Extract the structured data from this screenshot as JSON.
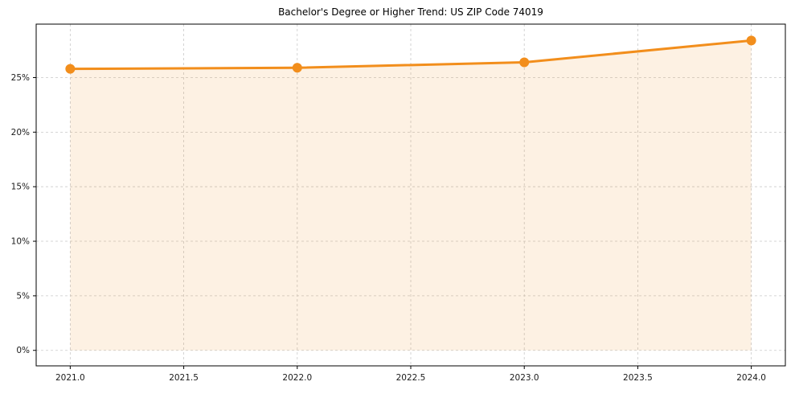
{
  "chart_data": {
    "type": "line",
    "title": "Bachelor's Degree or Higher Trend: US ZIP Code 74019",
    "x": [
      2021,
      2022,
      2023,
      2024
    ],
    "values": [
      25.8,
      25.9,
      26.4,
      28.4
    ],
    "xticks": [
      2021.0,
      2021.5,
      2022.0,
      2022.5,
      2023.0,
      2023.5,
      2024.0
    ],
    "xtick_labels": [
      "2021.0",
      "2021.5",
      "2022.0",
      "2022.5",
      "2023.0",
      "2023.5",
      "2024.0"
    ],
    "yticks": [
      0,
      5,
      10,
      15,
      20,
      25
    ],
    "ytick_labels": [
      "0%",
      "5%",
      "10%",
      "15%",
      "20%",
      "25%"
    ],
    "xlim": [
      2020.85,
      2024.15
    ],
    "ylim": [
      -1.42,
      29.9
    ],
    "grid": true,
    "grid_style": "dashed",
    "legend": false,
    "fill_to_zero": true,
    "line_color": "#f28e1c",
    "marker_color": "#f28e1c",
    "fill_color": "rgba(242,142,28,0.12)",
    "grid_color": "#c9c9c9",
    "spine_color": "#000000",
    "background_color": "#ffffff"
  }
}
